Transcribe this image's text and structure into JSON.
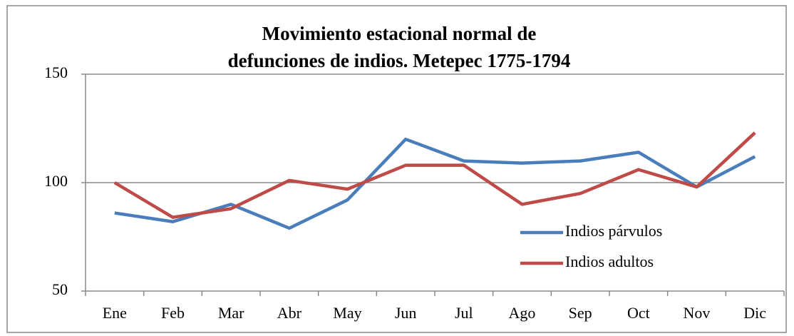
{
  "chart_data": {
    "type": "line",
    "title": [
      "Movimiento estacional normal de",
      "defunciones de indios. Metepec 1775-1794"
    ],
    "categories": [
      "Ene",
      "Feb",
      "Mar",
      "Abr",
      "May",
      "Jun",
      "Jul",
      "Ago",
      "Sep",
      "Oct",
      "Nov",
      "Dic"
    ],
    "series": [
      {
        "name": "Indios párvulos",
        "color": "#4a7ebb",
        "values": [
          86,
          82,
          90,
          79,
          92,
          120,
          110,
          109,
          110,
          114,
          98,
          112
        ]
      },
      {
        "name": "Indios adultos",
        "color": "#be4b48",
        "values": [
          100,
          84,
          88,
          101,
          97,
          108,
          108,
          90,
          95,
          106,
          98,
          123
        ]
      }
    ],
    "ylim": [
      50,
      150
    ],
    "yticks": [
      50,
      100,
      150
    ],
    "grid": true,
    "legend": "right"
  }
}
